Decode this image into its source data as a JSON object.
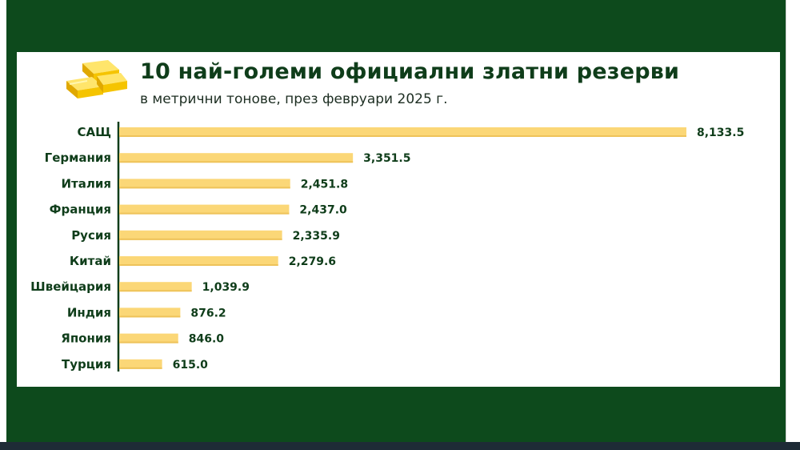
{
  "header": {
    "title": "10 най-големи официални златни резерви",
    "subtitle": "в метрични тонове, през февруари 2025 г.",
    "icon": "gold-bars-icon"
  },
  "colors": {
    "background": "#0d4a1c",
    "bar": "#fbd777",
    "text": "#0f3d1a"
  },
  "chart_data": {
    "type": "bar",
    "orientation": "horizontal",
    "title": "10 най-големи официални златни резерви",
    "subtitle": "в метрични тонове, през февруари 2025 г.",
    "categories": [
      "САЩ",
      "Германия",
      "Италия",
      "Франция",
      "Русия",
      "Китай",
      "Швейцария",
      "Индия",
      "Япония",
      "Турция"
    ],
    "values": [
      8133.5,
      3351.5,
      2451.8,
      2437.0,
      2335.9,
      2279.6,
      1039.9,
      876.2,
      846.0,
      615.0
    ],
    "value_labels": [
      "8,133.5",
      "3,351.5",
      "2,451.8",
      "2,437.0",
      "2,335.9",
      "2,279.6",
      "1,039.9",
      "876.2",
      "846.0",
      "615.0"
    ],
    "xlim": [
      0,
      8133.5
    ],
    "grid": false,
    "legend": "none"
  }
}
